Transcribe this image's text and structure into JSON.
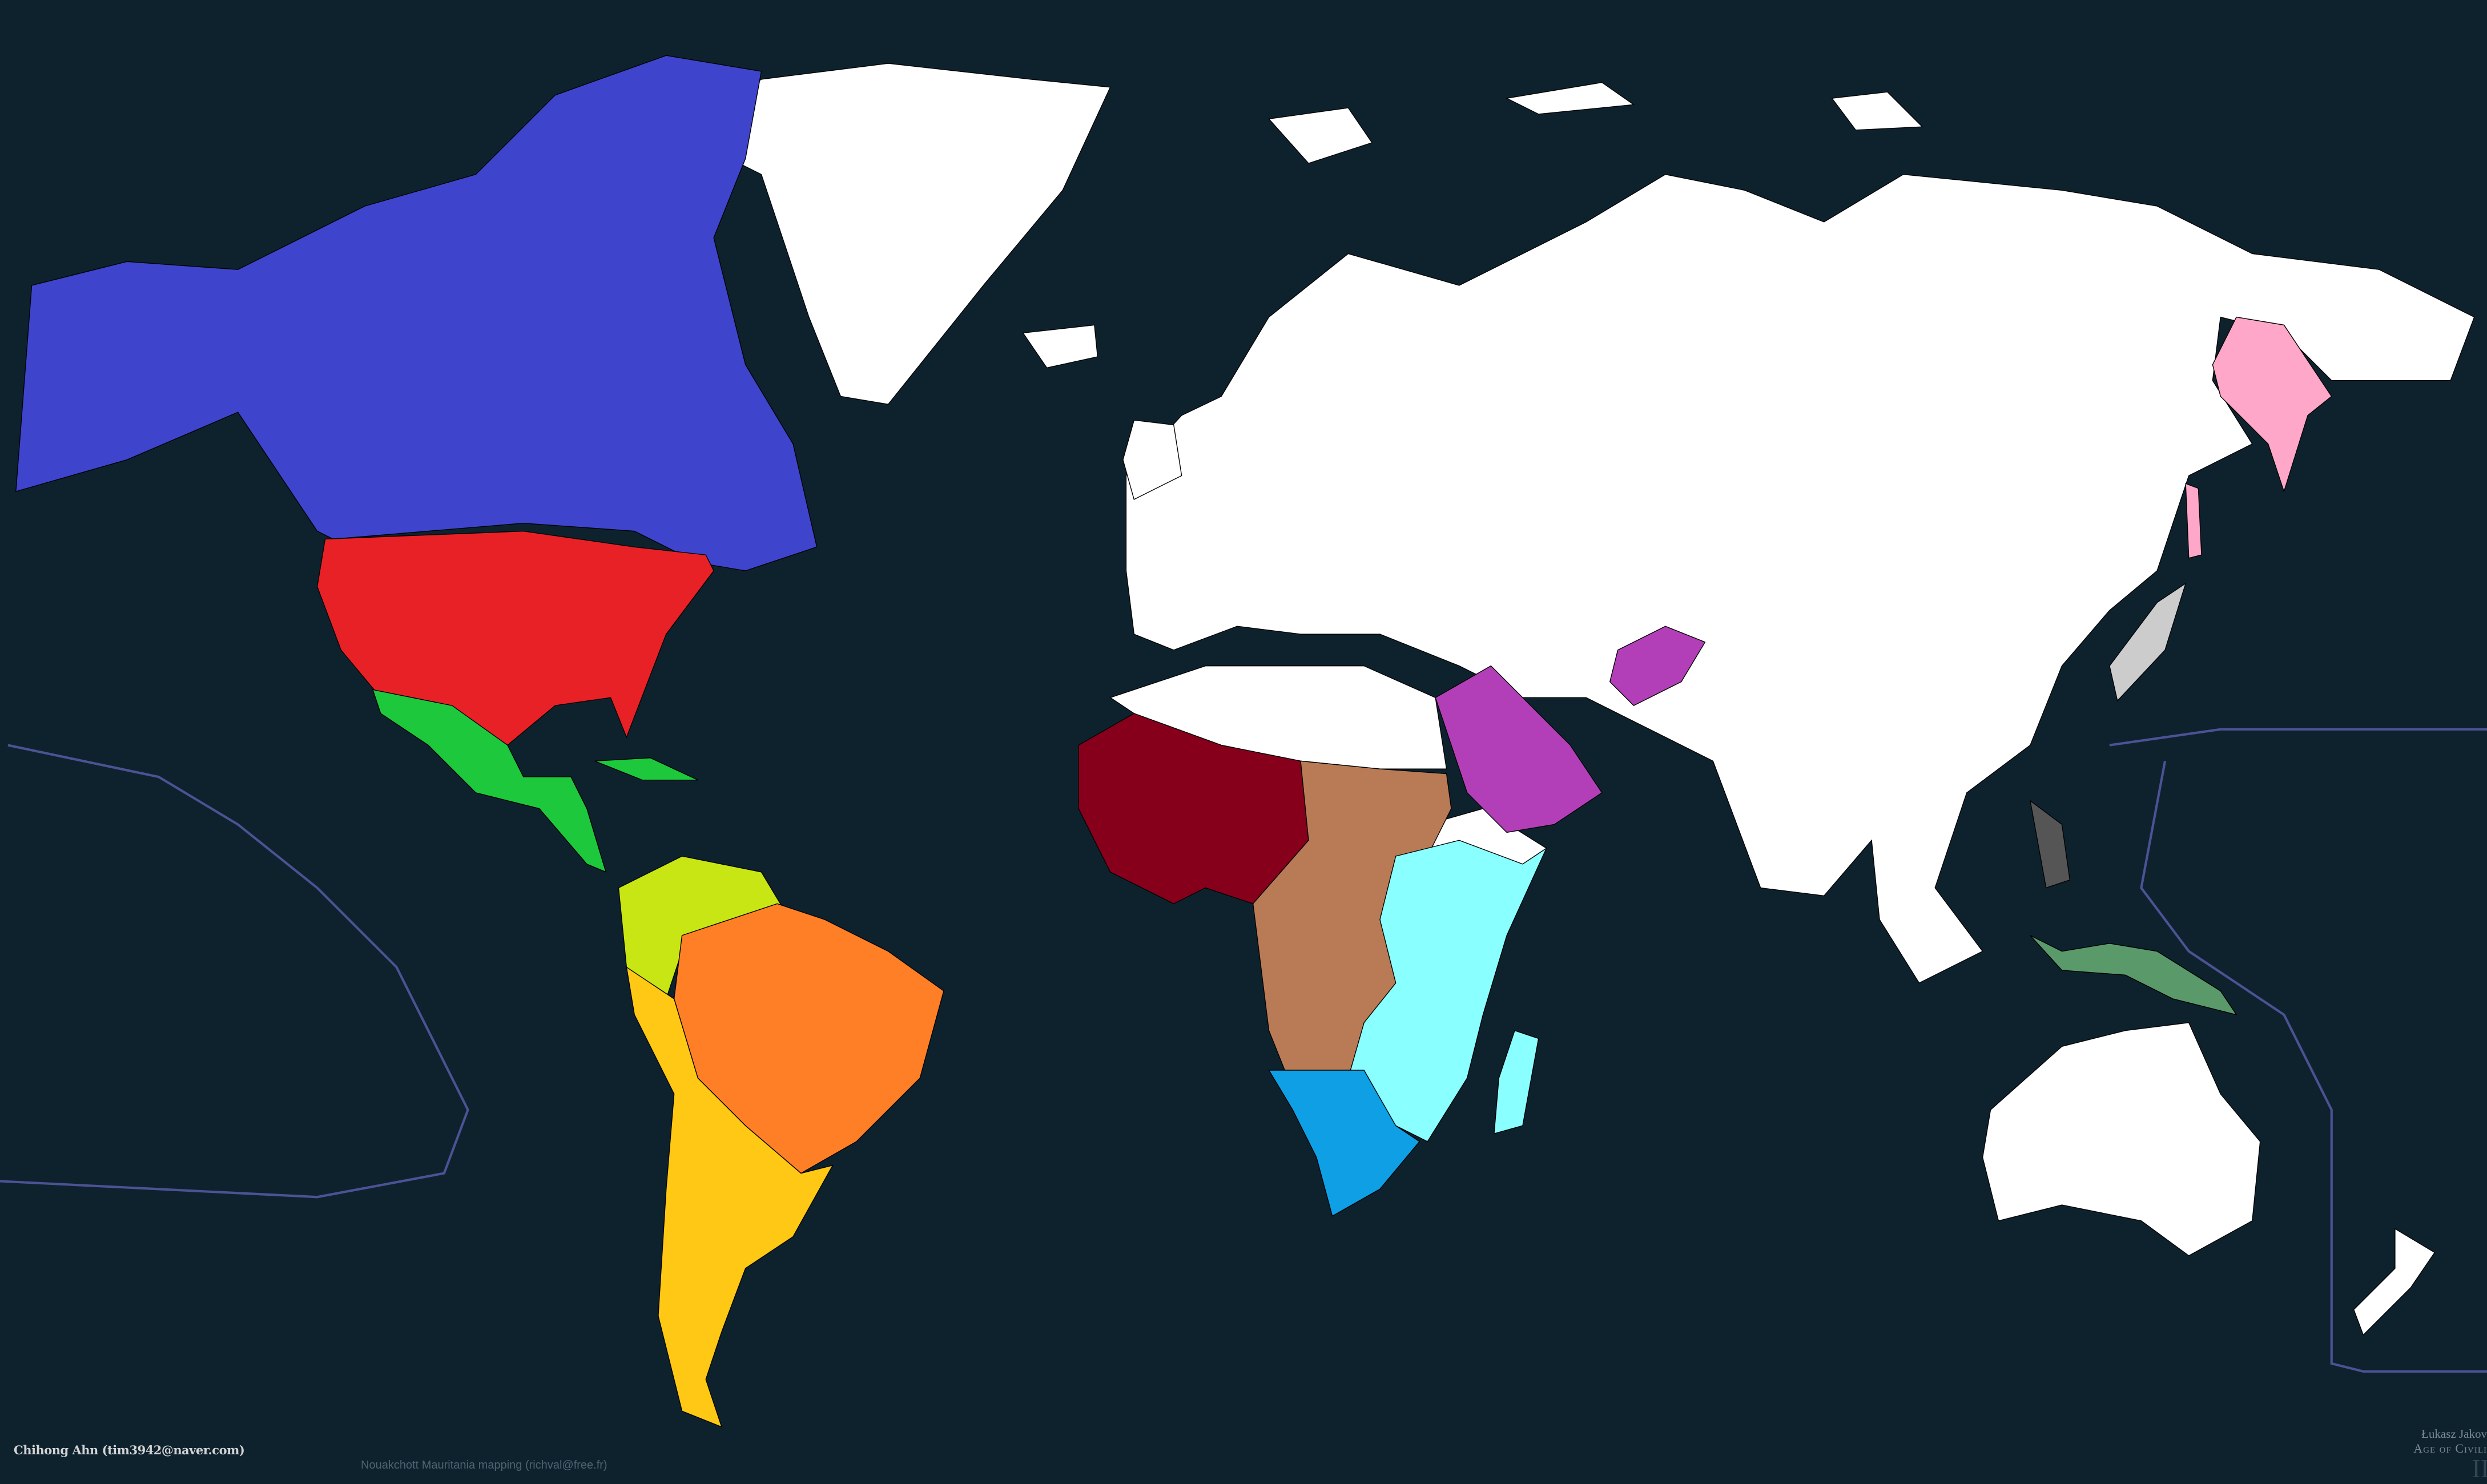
{
  "credits": {
    "author": "Chihong Ahn (tim3942@naver.com)",
    "mapping": "Nouakchott Mauritania mapping (richval@free.fr)",
    "signature_author": "Łukasz Jakov",
    "signature_game": "Age of Civili",
    "signature_numeral": "II"
  },
  "colors": {
    "ocean": "#0e222e",
    "unclaimed": "#ffffff",
    "border": "#000000",
    "date_line": "#4c5294",
    "north_america_north": "#3f44cc",
    "north_america_usa": "#e82127",
    "central_america": "#1ec83c",
    "northern_south_america": "#c8e614",
    "brazil_region": "#ff7f27",
    "southern_cone": "#ffc814",
    "west_africa": "#87001b",
    "central_africa": "#b87b56",
    "east_africa": "#8affff",
    "southern_africa": "#0e9fe4",
    "arabia": "#b33fb8",
    "far_east_russia": "#ffa7c8",
    "japan": "#cccccc",
    "philippines": "#555555",
    "new_guinea": "#5a9a6a"
  }
}
